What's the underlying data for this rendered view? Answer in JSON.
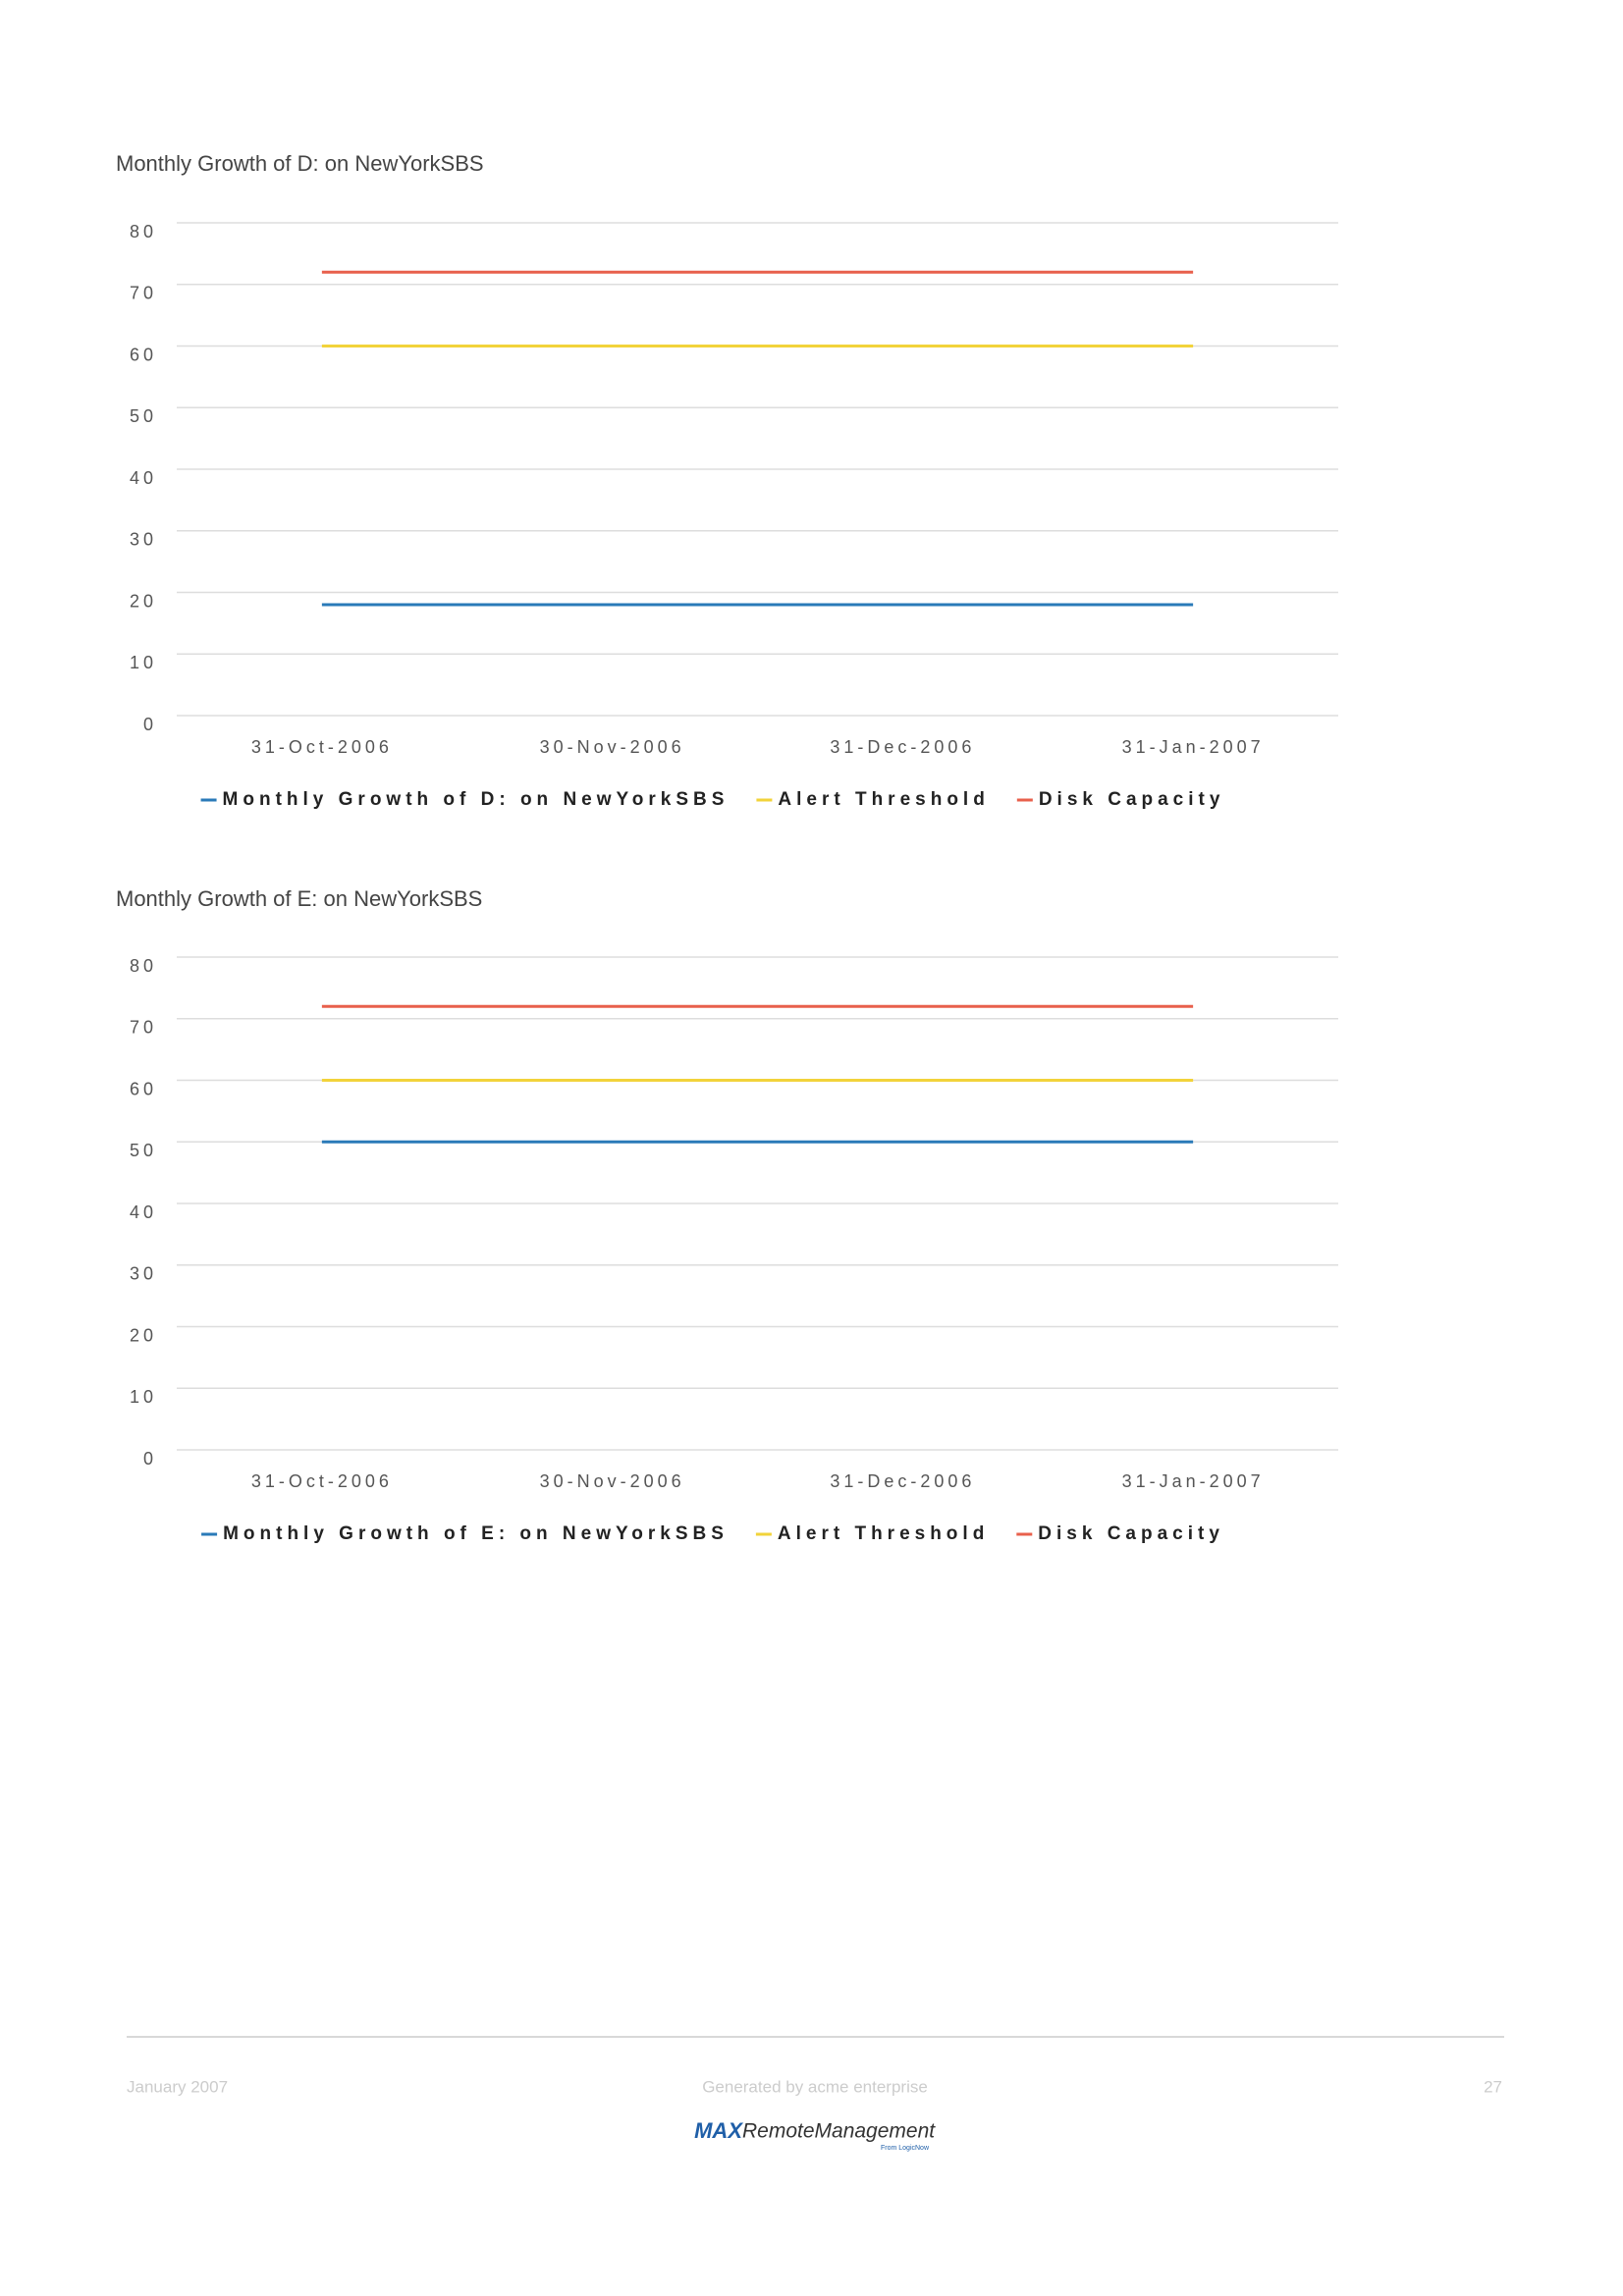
{
  "chart_data": [
    {
      "type": "line",
      "title": "Monthly Growth of D: on NewYorkSBS",
      "categories": [
        "31-Oct-2006",
        "30-Nov-2006",
        "31-Dec-2006",
        "31-Jan-2007"
      ],
      "series": [
        {
          "name": "Monthly Growth of D: on NewYorkSBS",
          "color": "#2a7ab8",
          "values": [
            18,
            18,
            18,
            18
          ]
        },
        {
          "name": "Alert Threshold",
          "color": "#f2d33a",
          "values": [
            60,
            60,
            60,
            60
          ]
        },
        {
          "name": "Disk Capacity",
          "color": "#e8604c",
          "values": [
            72,
            72,
            72,
            72
          ]
        }
      ],
      "ylim": [
        0,
        80
      ],
      "yticks": [
        0,
        10,
        20,
        30,
        40,
        50,
        60,
        70,
        80
      ],
      "grid": true
    },
    {
      "type": "line",
      "title": "Monthly Growth of E: on NewYorkSBS",
      "categories": [
        "31-Oct-2006",
        "30-Nov-2006",
        "31-Dec-2006",
        "31-Jan-2007"
      ],
      "series": [
        {
          "name": "Monthly Growth of E: on NewYorkSBS",
          "color": "#2a7ab8",
          "values": [
            50,
            50,
            50,
            50
          ]
        },
        {
          "name": "Alert Threshold",
          "color": "#f2d33a",
          "values": [
            60,
            60,
            60,
            60
          ]
        },
        {
          "name": "Disk Capacity",
          "color": "#e8604c",
          "values": [
            72,
            72,
            72,
            72
          ]
        }
      ],
      "ylim": [
        0,
        80
      ],
      "yticks": [
        0,
        10,
        20,
        30,
        40,
        50,
        60,
        70,
        80
      ],
      "grid": true
    }
  ],
  "footer": {
    "date": "January 2007",
    "generated": "Generated by acme enterprise",
    "page": "27",
    "logo_max": "MAX",
    "logo_rest": "RemoteManagement",
    "logo_sub": "From LogicNow"
  }
}
